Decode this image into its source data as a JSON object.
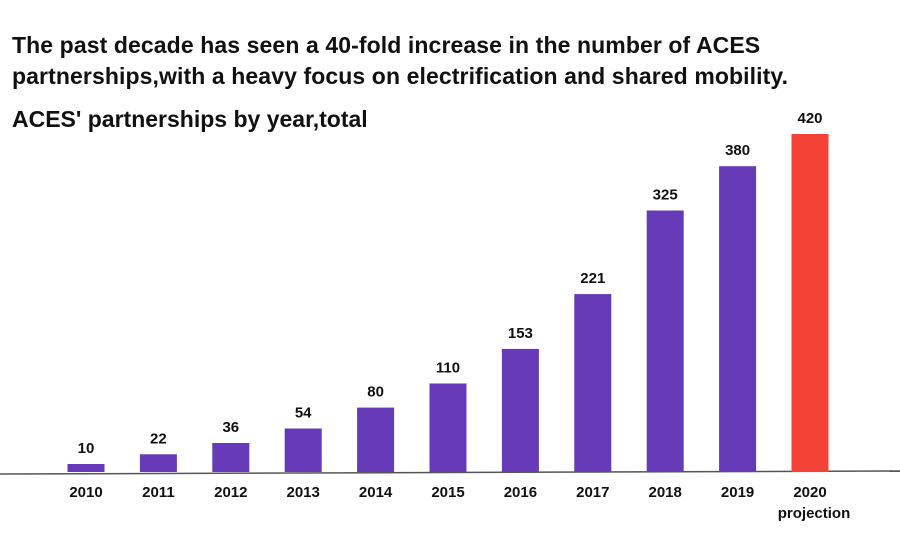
{
  "headline": "The past decade has seen a 40-fold increase in the number of ACES partnerships,with a heavy focus on electrification and shared mobility.",
  "chart_data": {
    "type": "bar",
    "title": "ACES' partnerships by year,total",
    "xlabel": "",
    "ylabel": "",
    "categories": [
      "2010",
      "2011",
      "2012",
      "2013",
      "2014",
      "2015",
      "2016",
      "2017",
      "2018",
      "2019",
      "2020"
    ],
    "category_sublabels": [
      "",
      "",
      "",
      "",
      "",
      "",
      "",
      "",
      "",
      "",
      "projection"
    ],
    "values": [
      10,
      22,
      36,
      54,
      80,
      110,
      153,
      221,
      325,
      380,
      420
    ],
    "bar_colors": [
      "#673ab7",
      "#673ab7",
      "#673ab7",
      "#673ab7",
      "#673ab7",
      "#673ab7",
      "#673ab7",
      "#673ab7",
      "#673ab7",
      "#673ab7",
      "#f44336"
    ],
    "ylim": [
      0,
      420
    ],
    "grid": false,
    "legend": "none"
  }
}
